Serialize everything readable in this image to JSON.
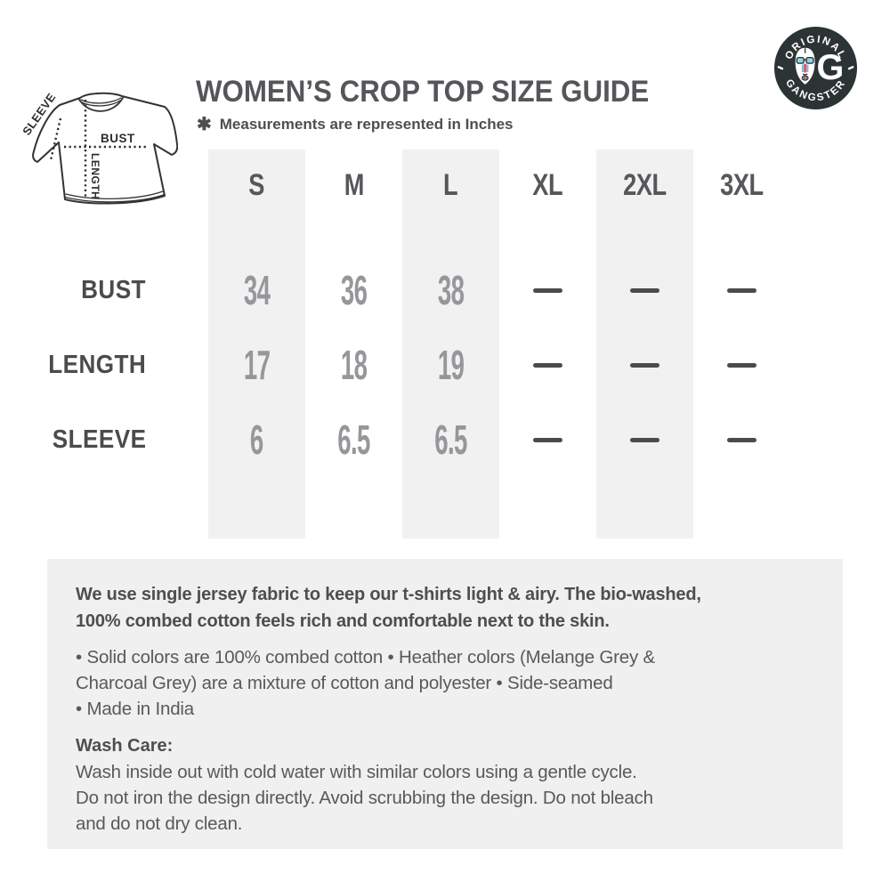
{
  "header": {
    "title": "WOMEN’S CROP TOP SIZE GUIDE",
    "note_icon": "✱",
    "note": "Measurements are represented in Inches"
  },
  "logo": {
    "top_text": "ORIGINAL",
    "bottom_text": "GANGSTER",
    "monogram": "G"
  },
  "diagram": {
    "sleeve_label": "SLEEVE",
    "bust_label": "BUST",
    "length_label": "LENGTH"
  },
  "size_table": {
    "columns": [
      "S",
      "M",
      "L",
      "XL",
      "2XL",
      "3XL"
    ],
    "rows": [
      {
        "label": "BUST",
        "values": [
          "34",
          "36",
          "38",
          "—",
          "—",
          "—"
        ]
      },
      {
        "label": "LENGTH",
        "values": [
          "17",
          "18",
          "19",
          "—",
          "—",
          "—"
        ]
      },
      {
        "label": "SLEEVE",
        "values": [
          "6",
          "6.5",
          "6.5",
          "—",
          "—",
          "—"
        ]
      }
    ]
  },
  "info_box": {
    "intro": "We use single jersey fabric to keep our t-shirts light & airy. The bio-washed,\n100% combed cotton feels rich and comfortable next to the skin.",
    "bullets": "• Solid colors are 100% combed cotton • Heather colors (Melange Grey &\nCharcoal Grey) are a mixture of cotton and polyester • Side-seamed\n• Made in India",
    "wash_care_title": "Wash Care:",
    "wash_care_text": "Wash inside out with cold water with similar colors using a gentle cycle.\nDo not iron the design directly. Avoid scrubbing the design. Do not bleach\nand do not dry clean."
  },
  "colors": {
    "title_text": "#55565a",
    "value_text": "#96979a",
    "dash": "#4a4b4d",
    "column_stripe": "#f1f1f2",
    "info_box_bg": "#f0f0f1",
    "logo_bg": "#2c3335",
    "logo_lens": "#8fd4e2",
    "logo_nose_red": "#e0564d",
    "logo_nose_blue": "#8fb4dd"
  }
}
